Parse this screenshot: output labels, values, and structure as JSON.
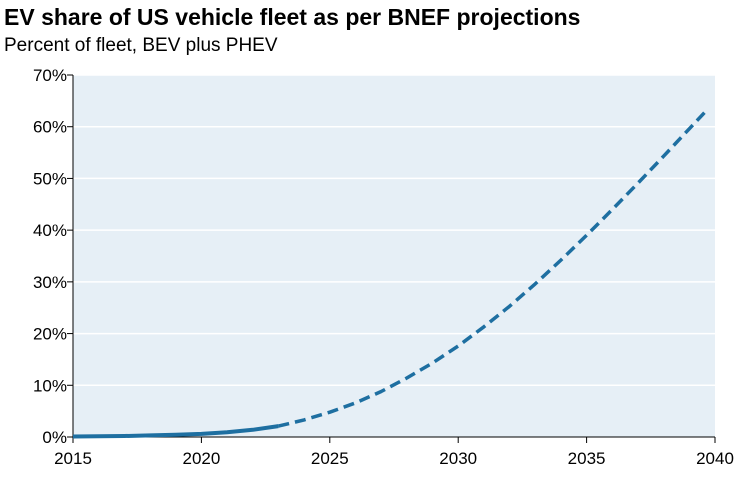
{
  "chart_data": {
    "type": "line",
    "title": "EV share of US vehicle fleet as per BNEF projections",
    "subtitle": "Percent of fleet, BEV plus PHEV",
    "xlabel": "",
    "ylabel": "",
    "xlim": [
      2015,
      2040
    ],
    "ylim": [
      0,
      70
    ],
    "x_ticks": [
      2015,
      2020,
      2025,
      2030,
      2035,
      2040
    ],
    "x_tick_labels": [
      "2015",
      "2020",
      "2025",
      "2030",
      "2035",
      "2040"
    ],
    "y_ticks": [
      0,
      10,
      20,
      30,
      40,
      50,
      60,
      70
    ],
    "y_tick_labels": [
      "0%",
      "10%",
      "20%",
      "30%",
      "40%",
      "50%",
      "60%",
      "70%"
    ],
    "grid": true,
    "legend": "none",
    "colors": {
      "plot_background": "#e6eff6",
      "grid": "#ffffff",
      "line": "#1e6fa1"
    },
    "series": [
      {
        "style": "solid",
        "x": [
          2015,
          2016,
          2017,
          2018,
          2019,
          2020,
          2021,
          2022,
          2023
        ],
        "y": [
          0.1,
          0.15,
          0.2,
          0.3,
          0.45,
          0.6,
          0.9,
          1.4,
          2.1
        ]
      },
      {
        "style": "dashed",
        "x": [
          2023,
          2024,
          2025,
          2026,
          2027,
          2028,
          2029,
          2030,
          2031,
          2032,
          2033,
          2034,
          2035,
          2036,
          2037,
          2038,
          2039,
          2039.7
        ],
        "y": [
          2.1,
          3.3,
          4.8,
          6.6,
          8.8,
          11.4,
          14.3,
          17.6,
          21.3,
          25.3,
          29.6,
          34.2,
          39.0,
          44.0,
          49.1,
          54.3,
          59.6,
          63.3
        ]
      }
    ]
  }
}
